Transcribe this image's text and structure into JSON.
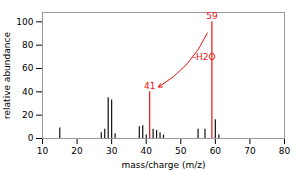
{
  "chart_data": {
    "type": "stem",
    "xlabel": "mass/charge (m/z)",
    "ylabel": "relative abundance",
    "series": [
      {
        "color": "#111111",
        "x": [
          15,
          27,
          28,
          29,
          30,
          31,
          38,
          39,
          40,
          42,
          43,
          44,
          45,
          55,
          57,
          60,
          61
        ],
        "values": [
          9,
          5,
          8,
          35,
          33,
          4,
          10,
          11,
          3,
          8,
          7,
          5,
          3,
          8,
          8,
          16,
          3
        ]
      },
      {
        "color": "#ee1111",
        "x": [
          41,
          59
        ],
        "values": [
          40,
          100
        ]
      }
    ],
    "annotations": [
      {
        "text": "41",
        "x": 41,
        "color": "#ee1111"
      },
      {
        "text": "59",
        "x": 59,
        "color": "#ee1111"
      },
      {
        "text": "-H2O",
        "from": 59,
        "to": 41,
        "color": "#ee1111"
      }
    ],
    "xlim": [
      10,
      80
    ],
    "ylim": [
      0,
      108
    ],
    "xticks": [
      10,
      20,
      30,
      40,
      50,
      60,
      70,
      80
    ],
    "yticks": [
      0,
      20,
      40,
      60,
      80,
      100
    ]
  }
}
